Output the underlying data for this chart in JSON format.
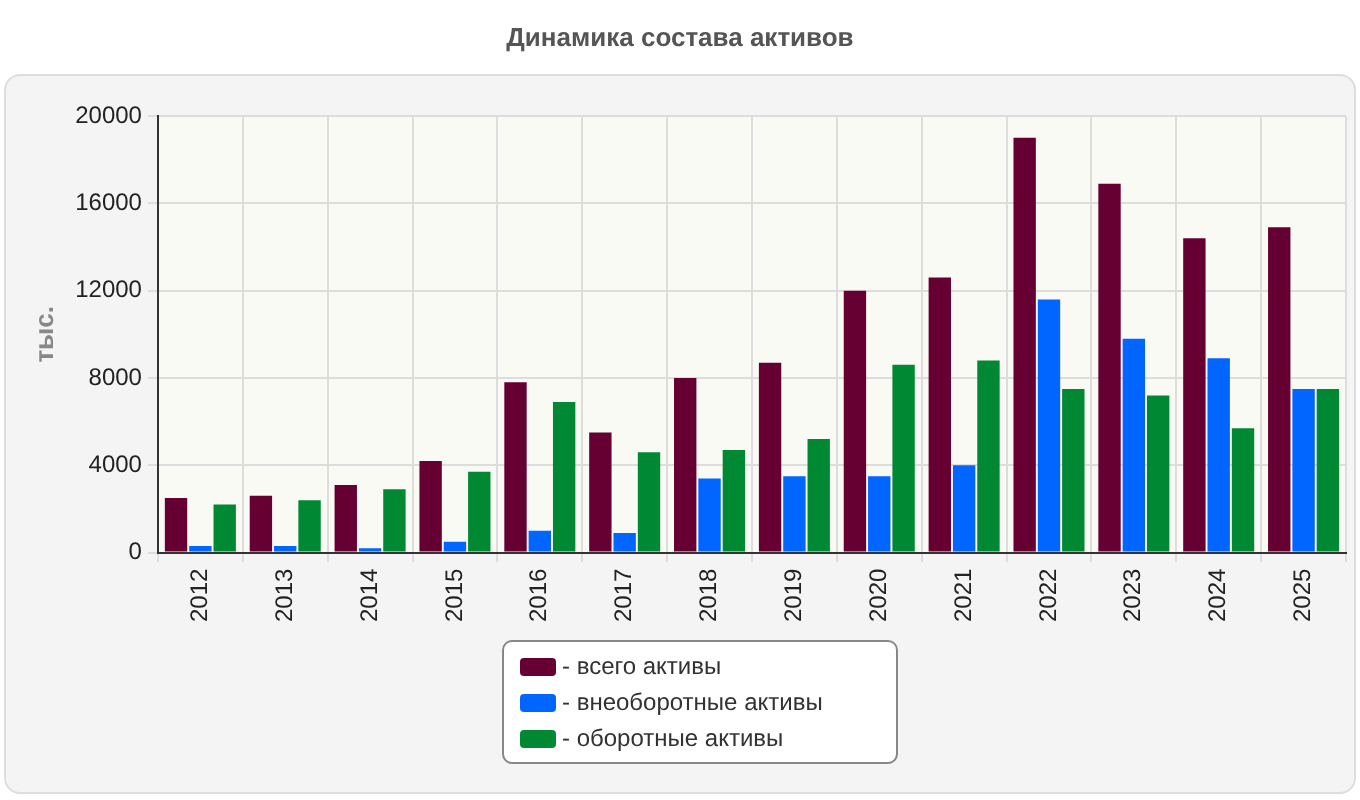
{
  "chart_data": {
    "type": "bar",
    "title": "Динамика состава активов",
    "ylabel": "тыс.",
    "categories": [
      "2012",
      "2013",
      "2014",
      "2015",
      "2016",
      "2017",
      "2018",
      "2019",
      "2020",
      "2021",
      "2022",
      "2023",
      "2024",
      "2025"
    ],
    "series": [
      {
        "name": "- всего активы",
        "color": "#660033",
        "values": [
          2500,
          2600,
          3100,
          4200,
          7800,
          5500,
          8000,
          8700,
          12000,
          12600,
          19000,
          16900,
          14400,
          14900
        ]
      },
      {
        "name": "- внеоборотные активы",
        "color": "#0066ff",
        "values": [
          300,
          300,
          200,
          500,
          1000,
          900,
          3400,
          3500,
          3500,
          4000,
          11600,
          9800,
          8900,
          7500
        ]
      },
      {
        "name": "- оборотные активы",
        "color": "#008833",
        "values": [
          2200,
          2400,
          2900,
          3700,
          6900,
          4600,
          4700,
          5200,
          8600,
          8800,
          7500,
          7200,
          5700,
          7500
        ]
      }
    ],
    "ylim": [
      0,
      20000
    ],
    "yticks": [
      0,
      4000,
      8000,
      12000,
      16000,
      20000
    ],
    "grid": true,
    "line_style": "dashed",
    "legend": "bottom"
  }
}
